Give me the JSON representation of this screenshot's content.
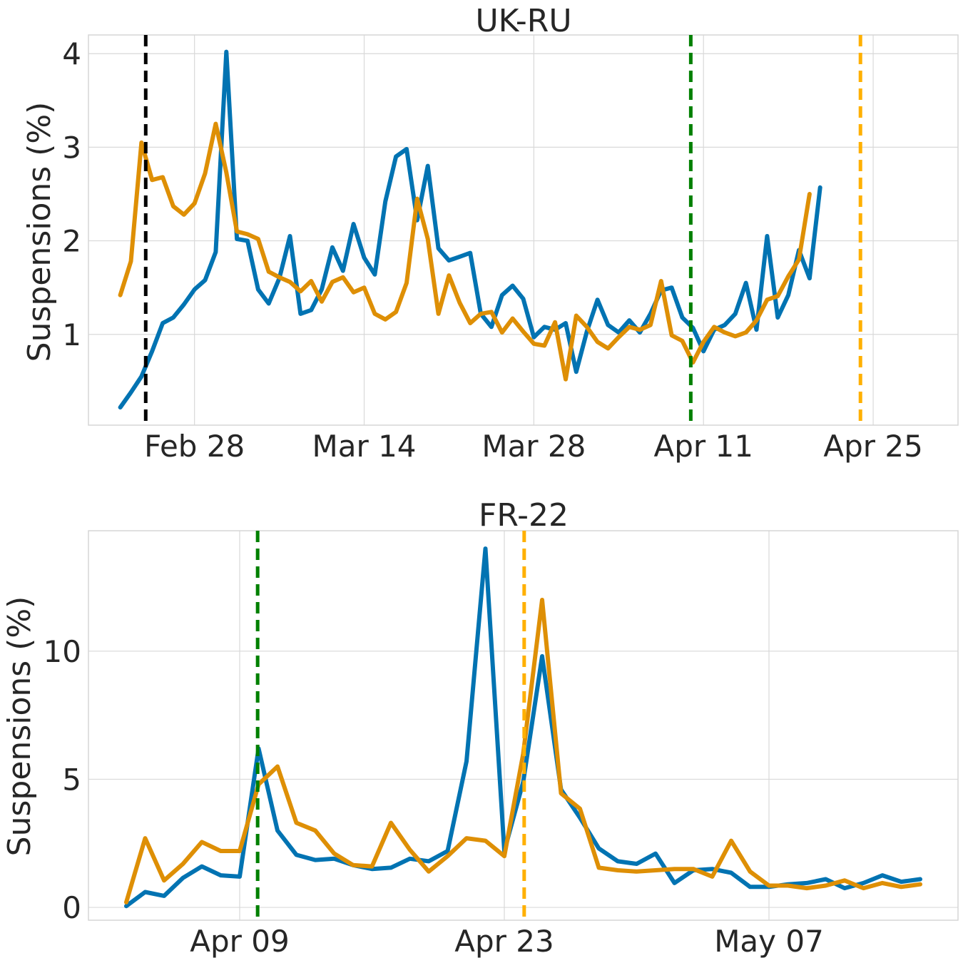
{
  "chart_data": [
    {
      "type": "line",
      "title": "UK-RU",
      "xlabel": "",
      "ylabel": "Suspensions (%)",
      "ylim": [
        0.03,
        4.2
      ],
      "yticks": [
        1,
        2,
        3,
        4
      ],
      "xlim": [
        -3,
        79
      ],
      "xticks": [
        {
          "label": "Feb 28",
          "x": 7
        },
        {
          "label": "Mar 14",
          "x": 23
        },
        {
          "label": "Mar 28",
          "x": 39
        },
        {
          "label": "Apr 11",
          "x": 55
        },
        {
          "label": "Apr 25",
          "x": 71
        }
      ],
      "vlines": [
        {
          "x": 2.4,
          "color": "#000000"
        },
        {
          "x": 53.8,
          "color": "#008000"
        },
        {
          "x": 69.8,
          "color": "#ffb000"
        }
      ],
      "series": [
        {
          "name": "series-blue",
          "color": "#0173b2",
          "values": [
            0.22,
            0.38,
            0.55,
            0.82,
            1.12,
            1.18,
            1.32,
            1.48,
            1.58,
            1.88,
            4.02,
            2.02,
            2.0,
            1.48,
            1.33,
            1.6,
            2.05,
            1.22,
            1.26,
            1.48,
            1.93,
            1.68,
            2.18,
            1.82,
            1.64,
            2.42,
            2.9,
            2.98,
            2.22,
            2.8,
            1.92,
            1.79,
            1.83,
            1.87,
            1.22,
            1.08,
            1.42,
            1.52,
            1.38,
            0.97,
            1.08,
            1.05,
            1.12,
            0.6,
            1.03,
            1.37,
            1.1,
            1.02,
            1.15,
            1.02,
            1.22,
            1.47,
            1.5,
            1.18,
            1.07,
            0.82,
            1.05,
            1.1,
            1.22,
            1.55,
            1.05,
            2.05,
            1.18,
            1.42,
            1.9,
            1.6,
            2.57
          ]
        },
        {
          "name": "series-orange",
          "color": "#de8f05",
          "values": [
            1.42,
            1.78,
            3.05,
            2.65,
            2.68,
            2.37,
            2.28,
            2.4,
            2.72,
            3.25,
            2.73,
            2.1,
            2.07,
            2.02,
            1.67,
            1.61,
            1.56,
            1.46,
            1.57,
            1.35,
            1.56,
            1.61,
            1.45,
            1.5,
            1.22,
            1.16,
            1.24,
            1.55,
            2.45,
            2.02,
            1.22,
            1.63,
            1.34,
            1.12,
            1.22,
            1.24,
            1.02,
            1.17,
            1.03,
            0.9,
            0.88,
            1.13,
            0.52,
            1.2,
            1.08,
            0.92,
            0.85,
            0.97,
            1.08,
            1.05,
            1.1,
            1.57,
            0.99,
            0.93,
            0.7,
            0.92,
            1.08,
            1.02,
            0.98,
            1.02,
            1.15,
            1.37,
            1.41,
            1.62,
            1.8,
            2.5
          ]
        }
      ]
    },
    {
      "type": "line",
      "title": "FR-22",
      "xlabel": "",
      "ylabel": "Suspensions (%)",
      "ylim": [
        -0.5,
        14.7
      ],
      "yticks": [
        0,
        5,
        10
      ],
      "xlim": [
        -2,
        44
      ],
      "xticks": [
        {
          "label": "Apr 09",
          "x": 6
        },
        {
          "label": "Apr 23",
          "x": 20
        },
        {
          "label": "May 07",
          "x": 34
        }
      ],
      "vlines": [
        {
          "x": 6.95,
          "color": "#008000"
        },
        {
          "x": 21.05,
          "color": "#ffb000"
        }
      ],
      "series": [
        {
          "name": "series-blue",
          "color": "#0173b2",
          "values": [
            0.05,
            0.6,
            0.45,
            1.15,
            1.6,
            1.25,
            1.2,
            6.2,
            3.0,
            2.05,
            1.85,
            1.9,
            1.65,
            1.5,
            1.55,
            1.9,
            1.8,
            2.2,
            5.7,
            14.0,
            2.2,
            4.9,
            9.8,
            4.6,
            3.5,
            2.3,
            1.8,
            1.7,
            2.1,
            0.95,
            1.45,
            1.5,
            1.35,
            0.8,
            0.8,
            0.9,
            0.95,
            1.1,
            0.75,
            0.95,
            1.25,
            1.0,
            1.1
          ]
        },
        {
          "name": "series-orange",
          "color": "#de8f05",
          "values": [
            0.2,
            2.7,
            1.05,
            1.7,
            2.55,
            2.2,
            2.2,
            4.8,
            5.5,
            3.3,
            3.0,
            2.1,
            1.65,
            1.6,
            3.3,
            2.25,
            1.4,
            2.0,
            2.7,
            2.6,
            2.0,
            6.0,
            12.0,
            4.45,
            3.85,
            1.55,
            1.45,
            1.4,
            1.45,
            1.5,
            1.5,
            1.2,
            2.6,
            1.4,
            0.85,
            0.85,
            0.75,
            0.85,
            1.05,
            0.75,
            0.95,
            0.8,
            0.9
          ]
        }
      ]
    }
  ]
}
